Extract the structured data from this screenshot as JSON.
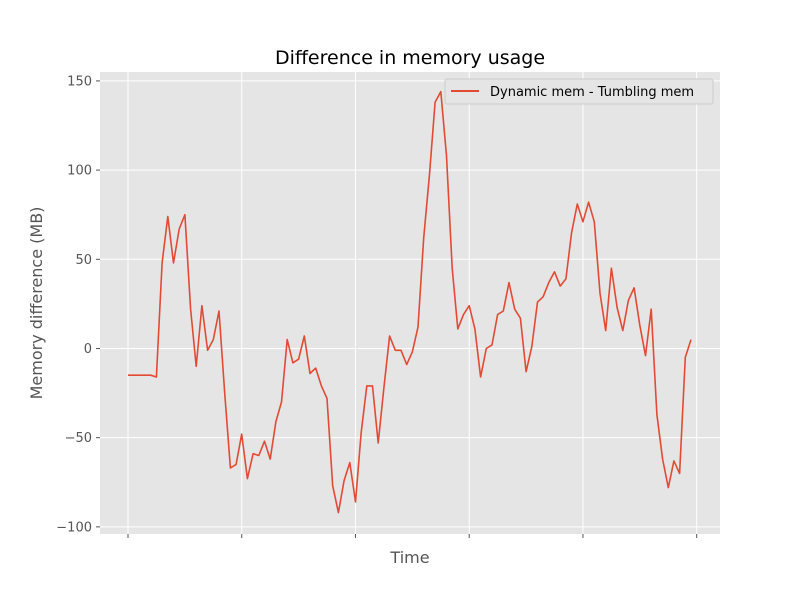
{
  "chart_data": {
    "type": "line",
    "title": "Difference in memory usage",
    "xlabel": "Time",
    "ylabel": "Memory difference (MB)",
    "x_tick_labels_shown": false,
    "yticks": [
      -100,
      -50,
      0,
      50,
      100,
      150
    ],
    "ylim": [
      -104,
      155
    ],
    "grid": true,
    "legend_position": "upper right",
    "series": [
      {
        "name": "Dynamic mem - Tumbling mem",
        "color": "#e24a33",
        "values": [
          -15,
          -15,
          -15,
          -15,
          -15,
          -16,
          48,
          74,
          48,
          67,
          75,
          22,
          -10,
          24,
          -1,
          5,
          21,
          -25,
          -67,
          -65,
          -48,
          -73,
          -59,
          -60,
          -52,
          -62,
          -41,
          -30,
          5,
          -8,
          -6,
          7,
          -14,
          -11,
          -21,
          -28,
          -77,
          -92,
          -74,
          -64,
          -86,
          -47,
          -21,
          -21,
          -53,
          -22,
          7,
          -1,
          -1,
          -9,
          -2,
          12,
          62,
          97,
          138,
          144,
          108,
          45,
          11,
          19,
          24,
          11,
          -16,
          0,
          2,
          19,
          21,
          37,
          22,
          17,
          -13,
          1,
          26,
          29,
          37,
          43,
          35,
          39,
          65,
          81,
          71,
          82,
          71,
          31,
          10,
          45,
          23,
          10,
          27,
          34,
          13,
          -4,
          22,
          -37,
          -62,
          -78,
          -63,
          -70,
          -5,
          5
        ]
      }
    ]
  }
}
